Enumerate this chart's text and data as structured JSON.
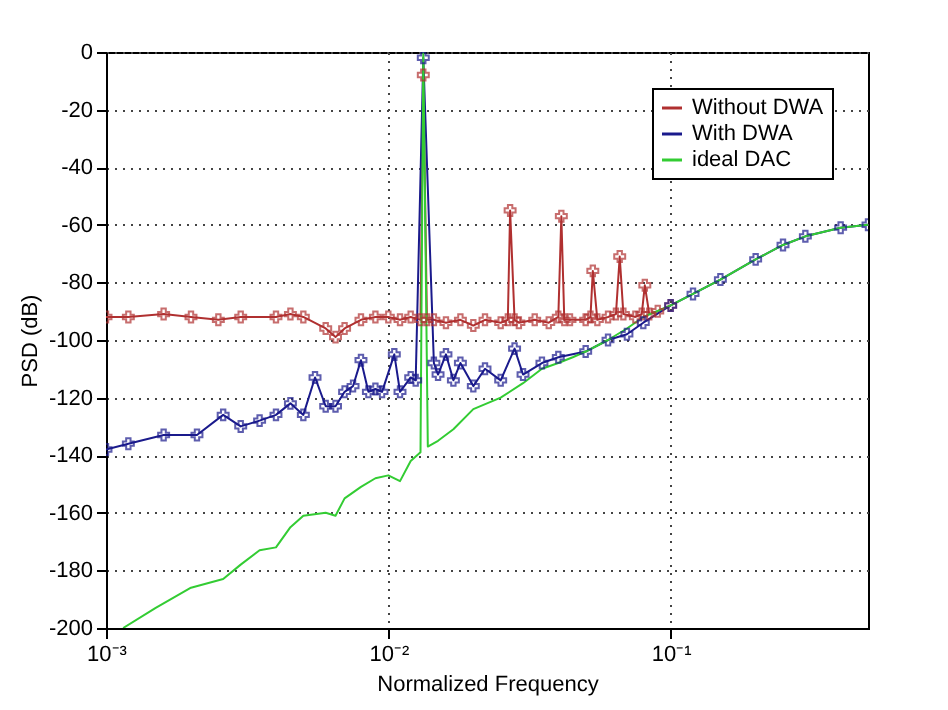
{
  "chart_data": {
    "type": "line",
    "xlabel": "Normalized Frequency",
    "ylabel": "PSD (dB)",
    "log": "x",
    "xlim": [
      0.001,
      0.5
    ],
    "xticks": [
      {
        "value": 0.001,
        "label": "10⁻³"
      },
      {
        "value": 0.01,
        "label": "10⁻²"
      },
      {
        "value": 0.1,
        "label": "10⁻¹"
      }
    ],
    "ylim": [
      -200,
      0
    ],
    "yticks": [
      -200,
      -180,
      -160,
      -140,
      -120,
      -100,
      -80,
      -60,
      -40,
      -20,
      0
    ],
    "grid": true,
    "legend": "top right",
    "series": [
      {
        "name": "Without DWA",
        "color": "#b03030",
        "marker": "cross",
        "x": [
          0.001,
          0.0012,
          0.0016,
          0.002,
          0.0025,
          0.003,
          0.004,
          0.0045,
          0.005,
          0.006,
          0.0065,
          0.007,
          0.008,
          0.009,
          0.01,
          0.011,
          0.012,
          0.013,
          0.0133,
          0.0137,
          0.0145,
          0.016,
          0.018,
          0.02,
          0.022,
          0.025,
          0.0265,
          0.027,
          0.028,
          0.029,
          0.033,
          0.037,
          0.04,
          0.041,
          0.042,
          0.044,
          0.05,
          0.052,
          0.053,
          0.055,
          0.06,
          0.064,
          0.066,
          0.068,
          0.075,
          0.079,
          0.081,
          0.084,
          0.09,
          0.1
        ],
        "values": [
          -92,
          -92,
          -91,
          -92,
          -93,
          -92,
          -92,
          -91,
          -92,
          -96,
          -99,
          -96,
          -93,
          -92,
          -92,
          -93,
          -92,
          -93,
          -8,
          -93,
          -93,
          -94,
          -93,
          -95,
          -93,
          -94,
          -93,
          -55,
          -93,
          -94,
          -93,
          -94,
          -92,
          -57,
          -93,
          -93,
          -93,
          -92,
          -76,
          -93,
          -92,
          -91,
          -71,
          -91,
          -92,
          -91,
          -81,
          -91,
          -90,
          -88
        ]
      },
      {
        "name": "With DWA",
        "color": "#1a1a8c",
        "marker": "cross",
        "x": [
          0.001,
          0.0012,
          0.0016,
          0.0021,
          0.0026,
          0.003,
          0.0035,
          0.004,
          0.0045,
          0.005,
          0.0055,
          0.006,
          0.0065,
          0.007,
          0.0075,
          0.008,
          0.0085,
          0.009,
          0.0095,
          0.0105,
          0.011,
          0.012,
          0.0125,
          0.0133,
          0.0145,
          0.015,
          0.016,
          0.017,
          0.018,
          0.02,
          0.022,
          0.025,
          0.028,
          0.03,
          0.035,
          0.04,
          0.05,
          0.06,
          0.07,
          0.08,
          0.1,
          0.12,
          0.15,
          0.2,
          0.25,
          0.3,
          0.4,
          0.5
        ],
        "values": [
          -138,
          -136,
          -133,
          -133,
          -126,
          -130,
          -128,
          -126,
          -122,
          -126,
          -113,
          -123,
          -123,
          -118,
          -116,
          -107,
          -118,
          -117,
          -118,
          -105,
          -118,
          -113,
          -114,
          -2,
          -108,
          -112,
          -105,
          -114,
          -108,
          -116,
          -110,
          -114,
          -103,
          -112,
          -108,
          -106,
          -104,
          -100,
          -98,
          -94,
          -88,
          -84,
          -79,
          -72,
          -67,
          -64,
          -61,
          -60
        ]
      },
      {
        "name": "ideal DAC",
        "color": "#33cc33",
        "marker": "none",
        "x": [
          0.00115,
          0.0015,
          0.002,
          0.0026,
          0.003,
          0.0035,
          0.004,
          0.0045,
          0.005,
          0.006,
          0.0065,
          0.007,
          0.008,
          0.009,
          0.01,
          0.011,
          0.012,
          0.013,
          0.0133,
          0.0138,
          0.015,
          0.017,
          0.02,
          0.025,
          0.03,
          0.035,
          0.04,
          0.045,
          0.05,
          0.06,
          0.07,
          0.08,
          0.1,
          0.12,
          0.15,
          0.2,
          0.25,
          0.3,
          0.4,
          0.5
        ],
        "values": [
          -200,
          -193,
          -186,
          -183,
          -178,
          -173,
          -172,
          -165,
          -161,
          -160,
          -161,
          -155,
          -151,
          -148,
          -147,
          -149,
          -142,
          -139,
          0,
          -137,
          -135,
          -131,
          -124,
          -120,
          -115,
          -110,
          -108,
          -106,
          -104,
          -100,
          -96,
          -92,
          -88,
          -84,
          -79,
          -72,
          -67,
          -64,
          -61,
          -60
        ]
      }
    ]
  }
}
